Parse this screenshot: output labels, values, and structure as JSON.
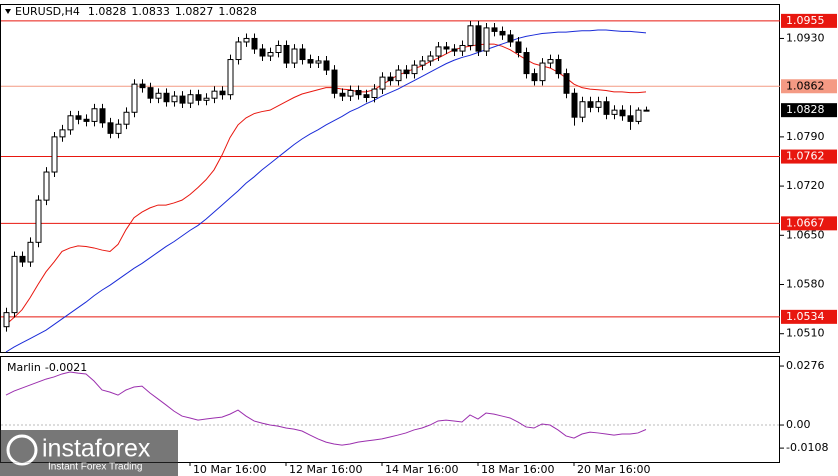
{
  "chart_data": {
    "type": "candlestick",
    "symbol": "EURUSD,H4",
    "categories": [
      null,
      null,
      null,
      null,
      null,
      null,
      null,
      null,
      null,
      null,
      null,
      null,
      null,
      null,
      null,
      null,
      null,
      null,
      null,
      null,
      null,
      null,
      null,
      "10 Mar 16:00",
      null,
      null,
      null,
      null,
      null,
      null,
      null,
      null,
      null,
      null,
      null,
      "12 Mar 16:00",
      null,
      null,
      null,
      null,
      null,
      null,
      null,
      null,
      null,
      null,
      null,
      "14 Mar 16:00",
      null,
      null,
      null,
      null,
      null,
      null,
      null,
      null,
      null,
      null,
      null,
      "18 Mar 16:00",
      null,
      null,
      null,
      null,
      null,
      null,
      null,
      null,
      null,
      null,
      null,
      "20 Mar 16:00",
      null,
      null,
      null,
      null,
      null,
      null,
      null,
      null,
      null
    ],
    "open": [
      1.052,
      1.054,
      1.062,
      1.0612,
      1.064,
      1.07,
      1.074,
      1.079,
      1.08,
      1.082,
      1.0815,
      1.0812,
      1.083,
      1.081,
      1.0795,
      1.0808,
      1.0825,
      1.0865,
      1.086,
      1.0845,
      1.0852,
      1.084,
      1.0848,
      1.0838,
      1.085,
      1.0842,
      1.0845,
      1.0855,
      1.085,
      1.09,
      1.0925,
      1.093,
      1.0915,
      1.0905,
      1.091,
      1.092,
      1.0895,
      1.0915,
      1.09,
      1.0895,
      1.0898,
      1.0885,
      1.0852,
      1.0848,
      1.0856,
      1.085,
      1.0846,
      1.0858,
      1.0875,
      1.087,
      1.0885,
      1.088,
      1.0892,
      1.0898,
      1.0905,
      1.0918,
      1.0915,
      1.0912,
      1.092,
      1.0948,
      1.0912,
      1.0945,
      1.094,
      1.0935,
      1.0925,
      1.091,
      1.088,
      1.087,
      1.0895,
      1.09,
      1.088,
      1.0852,
      1.0818,
      1.084,
      1.0832,
      1.084,
      1.0822,
      1.0828,
      1.082,
      1.0812,
      1.0828
    ],
    "high": [
      1.0547,
      1.0627,
      1.0627,
      1.0647,
      1.0707,
      1.0747,
      1.0797,
      1.0807,
      1.0827,
      1.0827,
      1.0822,
      1.0837,
      1.0837,
      1.0817,
      1.0815,
      1.0832,
      1.0872,
      1.0872,
      1.0867,
      1.0859,
      1.0859,
      1.0855,
      1.0855,
      1.0857,
      1.0857,
      1.0852,
      1.0862,
      1.0862,
      1.0907,
      1.0932,
      1.0937,
      1.0937,
      1.0922,
      1.0917,
      1.0927,
      1.0927,
      1.0922,
      1.0922,
      1.0907,
      1.0905,
      1.0905,
      1.0892,
      1.0859,
      1.0863,
      1.0863,
      1.0857,
      1.0865,
      1.0882,
      1.0882,
      1.0892,
      1.0892,
      1.0899,
      1.0905,
      1.0912,
      1.0925,
      1.0925,
      1.0922,
      1.0927,
      1.0955,
      1.0955,
      1.0952,
      1.0952,
      1.0947,
      1.0942,
      1.0932,
      1.0917,
      1.0887,
      1.0902,
      1.0907,
      1.0907,
      1.0887,
      1.0859,
      1.0847,
      1.0847,
      1.0847,
      1.0847,
      1.0835,
      1.0835,
      1.0835,
      1.0832,
      1.0833
    ],
    "low": [
      1.0513,
      1.0533,
      1.0605,
      1.0605,
      1.0633,
      1.0693,
      1.0733,
      1.0783,
      1.0793,
      1.0808,
      1.0805,
      1.0805,
      1.0803,
      1.0788,
      1.0788,
      1.0801,
      1.0818,
      1.0853,
      1.0838,
      1.0838,
      1.0833,
      1.0833,
      1.0831,
      1.0831,
      1.0835,
      1.0835,
      1.0838,
      1.0843,
      1.0843,
      1.0893,
      1.0918,
      1.0908,
      1.0898,
      1.0898,
      1.0903,
      1.0888,
      1.0888,
      1.0893,
      1.0888,
      1.0888,
      1.0878,
      1.0845,
      1.0841,
      1.0841,
      1.0843,
      1.0839,
      1.0839,
      1.0851,
      1.0863,
      1.0863,
      1.0873,
      1.0873,
      1.0885,
      1.0891,
      1.0898,
      1.0908,
      1.0905,
      1.0905,
      1.0913,
      1.0905,
      1.0905,
      1.0933,
      1.0928,
      1.0918,
      1.0903,
      1.0873,
      1.0863,
      1.0863,
      1.0888,
      1.0873,
      1.0845,
      1.0806,
      1.0811,
      1.0825,
      1.0825,
      1.0815,
      1.0815,
      1.0813,
      1.08,
      1.0808,
      1.0827
    ],
    "close": [
      1.054,
      1.062,
      1.0612,
      1.064,
      1.07,
      1.074,
      1.079,
      1.08,
      1.082,
      1.0815,
      1.0812,
      1.083,
      1.081,
      1.0795,
      1.0808,
      1.0825,
      1.0865,
      1.086,
      1.0845,
      1.0852,
      1.084,
      1.0848,
      1.0838,
      1.085,
      1.0842,
      1.0845,
      1.0855,
      1.085,
      1.09,
      1.0925,
      1.093,
      1.0915,
      1.0905,
      1.091,
      1.092,
      1.0895,
      1.0915,
      1.09,
      1.0895,
      1.0898,
      1.0885,
      1.0852,
      1.0848,
      1.0856,
      1.085,
      1.0846,
      1.0858,
      1.0875,
      1.087,
      1.0885,
      1.088,
      1.0892,
      1.0898,
      1.0905,
      1.0918,
      1.0915,
      1.0912,
      1.092,
      1.0948,
      1.0912,
      1.0945,
      1.094,
      1.0935,
      1.0925,
      1.091,
      1.088,
      1.087,
      1.0895,
      1.09,
      1.088,
      1.0852,
      1.0818,
      1.084,
      1.0832,
      1.084,
      1.0822,
      1.0828,
      1.082,
      1.0812,
      1.0828,
      1.0828
    ],
    "bull_color": "#ffffff",
    "bear_color": "#000000",
    "series": [
      {
        "color": "#e8170f",
        "values": [
          1.0523,
          1.0533,
          1.0544,
          1.0561,
          1.058,
          1.0598,
          1.0612,
          1.0627,
          1.0632,
          1.0635,
          1.0634,
          1.0632,
          1.0629,
          1.0627,
          1.0637,
          1.0658,
          1.0675,
          1.0683,
          1.0689,
          1.0693,
          1.0693,
          1.0696,
          1.07,
          1.0708,
          1.0718,
          1.0729,
          1.0743,
          1.0764,
          1.0789,
          1.0807,
          1.0817,
          1.0823,
          1.0826,
          1.0828,
          1.0834,
          1.084,
          1.0846,
          1.0851,
          1.0854,
          1.0857,
          1.086,
          1.086,
          1.0858,
          1.0857,
          1.0854,
          1.0854,
          1.0857,
          1.0864,
          1.0871,
          1.0878,
          1.0882,
          1.0887,
          1.0891,
          1.0897,
          1.0902,
          1.0908,
          1.0914,
          1.0917,
          1.0919,
          1.0921,
          1.0922,
          1.0922,
          1.0919,
          1.0914,
          1.0907,
          1.09,
          1.0894,
          1.0891,
          1.0888,
          1.0882,
          1.0874,
          1.0865,
          1.086,
          1.0858,
          1.0857,
          1.0856,
          1.0854,
          1.0854,
          1.0853,
          1.0853,
          1.0854
        ]
      },
      {
        "color": "#1a2bd8",
        "values": [
          1.0484,
          1.0491,
          1.0497,
          1.0503,
          1.0509,
          1.0515,
          1.0523,
          1.0531,
          1.0539,
          1.0547,
          1.0555,
          1.0564,
          1.0572,
          1.0579,
          1.0587,
          1.0595,
          1.0603,
          1.061,
          1.0618,
          1.0626,
          1.0634,
          1.0641,
          1.0649,
          1.0657,
          1.0664,
          1.0673,
          1.0683,
          1.0693,
          1.0703,
          1.0713,
          1.0724,
          1.0733,
          1.0743,
          1.0752,
          1.0761,
          1.077,
          1.0779,
          1.0787,
          1.0794,
          1.08,
          1.0807,
          1.0813,
          1.0819,
          1.0826,
          1.0831,
          1.0837,
          1.0842,
          1.0848,
          1.0853,
          1.0858,
          1.0864,
          1.087,
          1.0876,
          1.0882,
          1.0888,
          1.0894,
          1.0899,
          1.0903,
          1.0906,
          1.091,
          1.0914,
          1.0918,
          1.0922,
          1.0926,
          1.093,
          1.0933,
          1.0935,
          1.0937,
          1.0938,
          1.0939,
          1.0939,
          1.094,
          1.0941,
          1.0941,
          1.0942,
          1.0942,
          1.0941,
          1.094,
          1.094,
          1.0939,
          1.0938
        ]
      }
    ],
    "ylim": [
      1.0484,
      1.0979
    ],
    "yticks": [
      {
        "value": 1.093,
        "label": "1.0930"
      },
      {
        "value": 1.079,
        "label": "1.0790"
      },
      {
        "value": 1.072,
        "label": "1.0720"
      },
      {
        "value": 1.065,
        "label": "1.0650"
      },
      {
        "value": 1.058,
        "label": "1.0580"
      },
      {
        "value": 1.051,
        "label": "1.0510"
      }
    ],
    "levels": [
      {
        "value": 1.0955,
        "color": "#e8170f"
      },
      {
        "value": 1.0862,
        "color": "#f49a84"
      },
      {
        "value": 1.0762,
        "color": "#e8170f"
      },
      {
        "value": 1.0667,
        "color": "#e8170f"
      },
      {
        "value": 1.0534,
        "color": "#e8170f"
      }
    ],
    "indicator": {
      "type": "line",
      "name": "Marlin",
      "color": "#9b2fae",
      "values": [
        0.014,
        0.0159,
        0.0173,
        0.0187,
        0.0201,
        0.0215,
        0.0225,
        0.0239,
        0.0248,
        0.0243,
        0.0239,
        0.0206,
        0.0164,
        0.0154,
        0.014,
        0.0164,
        0.0178,
        0.0182,
        0.015,
        0.0122,
        0.0094,
        0.0065,
        0.0042,
        0.0033,
        0.0023,
        0.0028,
        0.0033,
        0.0037,
        0.0051,
        0.007,
        0.0042,
        0.0019,
        0.0009,
        0,
        -0.0005,
        -0.0014,
        -0.0019,
        -0.0028,
        -0.0047,
        -0.0065,
        -0.008,
        -0.0089,
        -0.0094,
        -0.0089,
        -0.008,
        -0.0075,
        -0.007,
        -0.0065,
        -0.0056,
        -0.0047,
        -0.0037,
        -0.0023,
        -0.0014,
        0,
        0.0019,
        0.0023,
        0.0019,
        0.0014,
        0.0047,
        0.0028,
        0.0056,
        0.0051,
        0.0042,
        0.0033,
        0.0014,
        -0.0009,
        -0.0014,
        0.0005,
        0,
        -0.0023,
        -0.0051,
        -0.0061,
        -0.0042,
        -0.0033,
        -0.0037,
        -0.0042,
        -0.0047,
        -0.0042,
        -0.0042,
        -0.0037,
        -0.0021
      ],
      "ylim": [
        -0.0173,
        0.0323
      ],
      "yticks": [
        0.0276,
        {
          "value": 0,
          "label": "0.00"
        },
        -0.0108
      ]
    },
    "watermark": {
      "brand": "instaforex",
      "tagline": "Instant Forex Trading"
    }
  }
}
